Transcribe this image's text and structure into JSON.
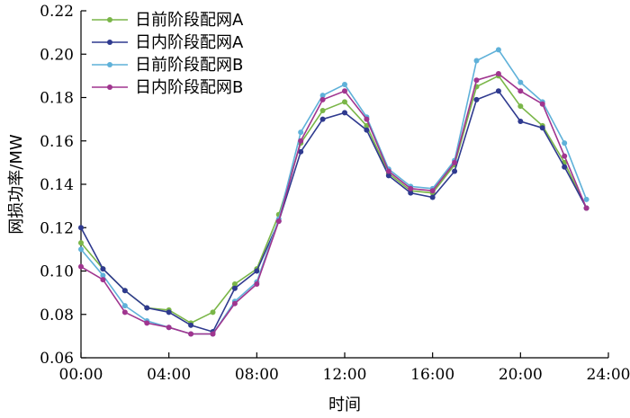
{
  "chart_data": {
    "type": "line",
    "title": "",
    "xlabel": "时间",
    "ylabel": "网损功率/MW",
    "xlim": [
      0,
      24
    ],
    "ylim": [
      0.06,
      0.22
    ],
    "x_ticks": [
      "00:00",
      "04:00",
      "08:00",
      "12:00",
      "16:00",
      "20:00",
      "24:00"
    ],
    "y_ticks": [
      "0.06",
      "0.08",
      "0.10",
      "0.12",
      "0.14",
      "0.16",
      "0.18",
      "0.20",
      "0.22"
    ],
    "grid": false,
    "legend_position": "top-left",
    "x": [
      0,
      1,
      2,
      3,
      4,
      5,
      6,
      7,
      8,
      9,
      10,
      11,
      12,
      13,
      14,
      15,
      16,
      17,
      18,
      19,
      20,
      21,
      22,
      23,
      24
    ],
    "series": [
      {
        "name": "日前阶段配网A",
        "color": "#7ab648",
        "values": [
          0.113,
          0.101,
          0.091,
          0.083,
          0.082,
          0.076,
          0.081,
          0.094,
          0.101,
          0.126,
          0.159,
          0.174,
          0.178,
          0.167,
          0.145,
          0.137,
          0.136,
          0.149,
          0.185,
          0.19,
          0.176,
          0.167,
          0.15,
          0.129,
          null
        ]
      },
      {
        "name": "日内阶段配网A",
        "color": "#2f3a8f",
        "values": [
          0.12,
          0.101,
          0.091,
          0.083,
          0.081,
          0.075,
          0.072,
          0.092,
          0.1,
          0.123,
          0.155,
          0.17,
          0.173,
          0.165,
          0.144,
          0.136,
          0.134,
          0.146,
          0.179,
          0.183,
          0.169,
          0.166,
          0.148,
          0.129,
          null
        ]
      },
      {
        "name": "日前阶段配网B",
        "color": "#5fb1d9",
        "values": [
          0.11,
          0.098,
          0.084,
          0.077,
          0.074,
          0.071,
          0.071,
          0.086,
          0.095,
          0.124,
          0.164,
          0.181,
          0.186,
          0.171,
          0.147,
          0.139,
          0.138,
          0.151,
          0.197,
          0.202,
          0.187,
          0.178,
          0.159,
          0.133,
          null
        ]
      },
      {
        "name": "日内阶段配网B",
        "color": "#a0358f",
        "values": [
          0.102,
          0.096,
          0.081,
          0.076,
          0.074,
          0.071,
          0.071,
          0.085,
          0.094,
          0.123,
          0.16,
          0.179,
          0.183,
          0.17,
          0.146,
          0.138,
          0.137,
          0.15,
          0.188,
          0.191,
          0.183,
          0.177,
          0.153,
          0.129,
          null
        ]
      }
    ]
  }
}
